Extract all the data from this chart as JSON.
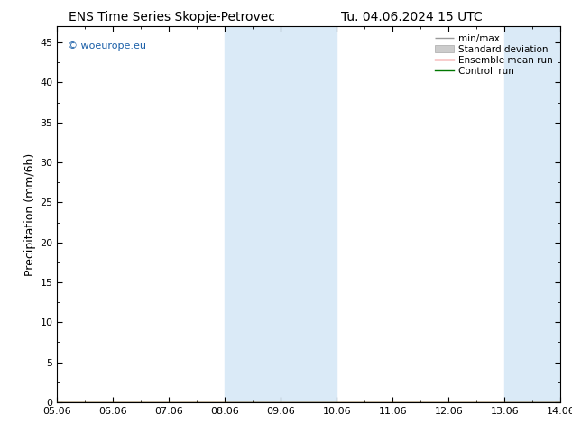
{
  "title_left": "ENS Time Series Skopje-Petrovec",
  "title_right": "Tu. 04.06.2024 15 UTC",
  "ylabel": "Precipitation (mm/6h)",
  "watermark": "© woeurope.eu",
  "x_tick_labels": [
    "05.06",
    "06.06",
    "07.06",
    "08.06",
    "09.06",
    "10.06",
    "11.06",
    "12.06",
    "13.06",
    "14.06"
  ],
  "x_tick_positions": [
    0,
    1,
    2,
    3,
    4,
    5,
    6,
    7,
    8,
    9
  ],
  "ylim": [
    0,
    47
  ],
  "yticks": [
    0,
    5,
    10,
    15,
    20,
    25,
    30,
    35,
    40,
    45
  ],
  "shaded_regions": [
    {
      "x_start": 3.0,
      "x_end": 3.5,
      "color": "#d6e8f7"
    },
    {
      "x_start": 3.5,
      "x_end": 4.0,
      "color": "#d6e8f7"
    },
    {
      "x_start": 4.0,
      "x_end": 5.0,
      "color": "#d6e8f7"
    },
    {
      "x_start": 8.0,
      "x_end": 8.5,
      "color": "#d6e8f7"
    },
    {
      "x_start": 8.5,
      "x_end": 9.0,
      "color": "#d6e8f7"
    }
  ],
  "shaded_regions_merged": [
    {
      "x_start": 3.0,
      "x_end": 5.0
    },
    {
      "x_start": 8.0,
      "x_end": 9.0
    }
  ],
  "shade_color": "#daeaf7",
  "bg_color": "#ffffff",
  "spine_color": "#000000",
  "title_fontsize": 10,
  "tick_fontsize": 8,
  "ylabel_fontsize": 9,
  "watermark_color": "#1a5fa8",
  "watermark_fontsize": 8,
  "legend_fontsize": 7.5
}
